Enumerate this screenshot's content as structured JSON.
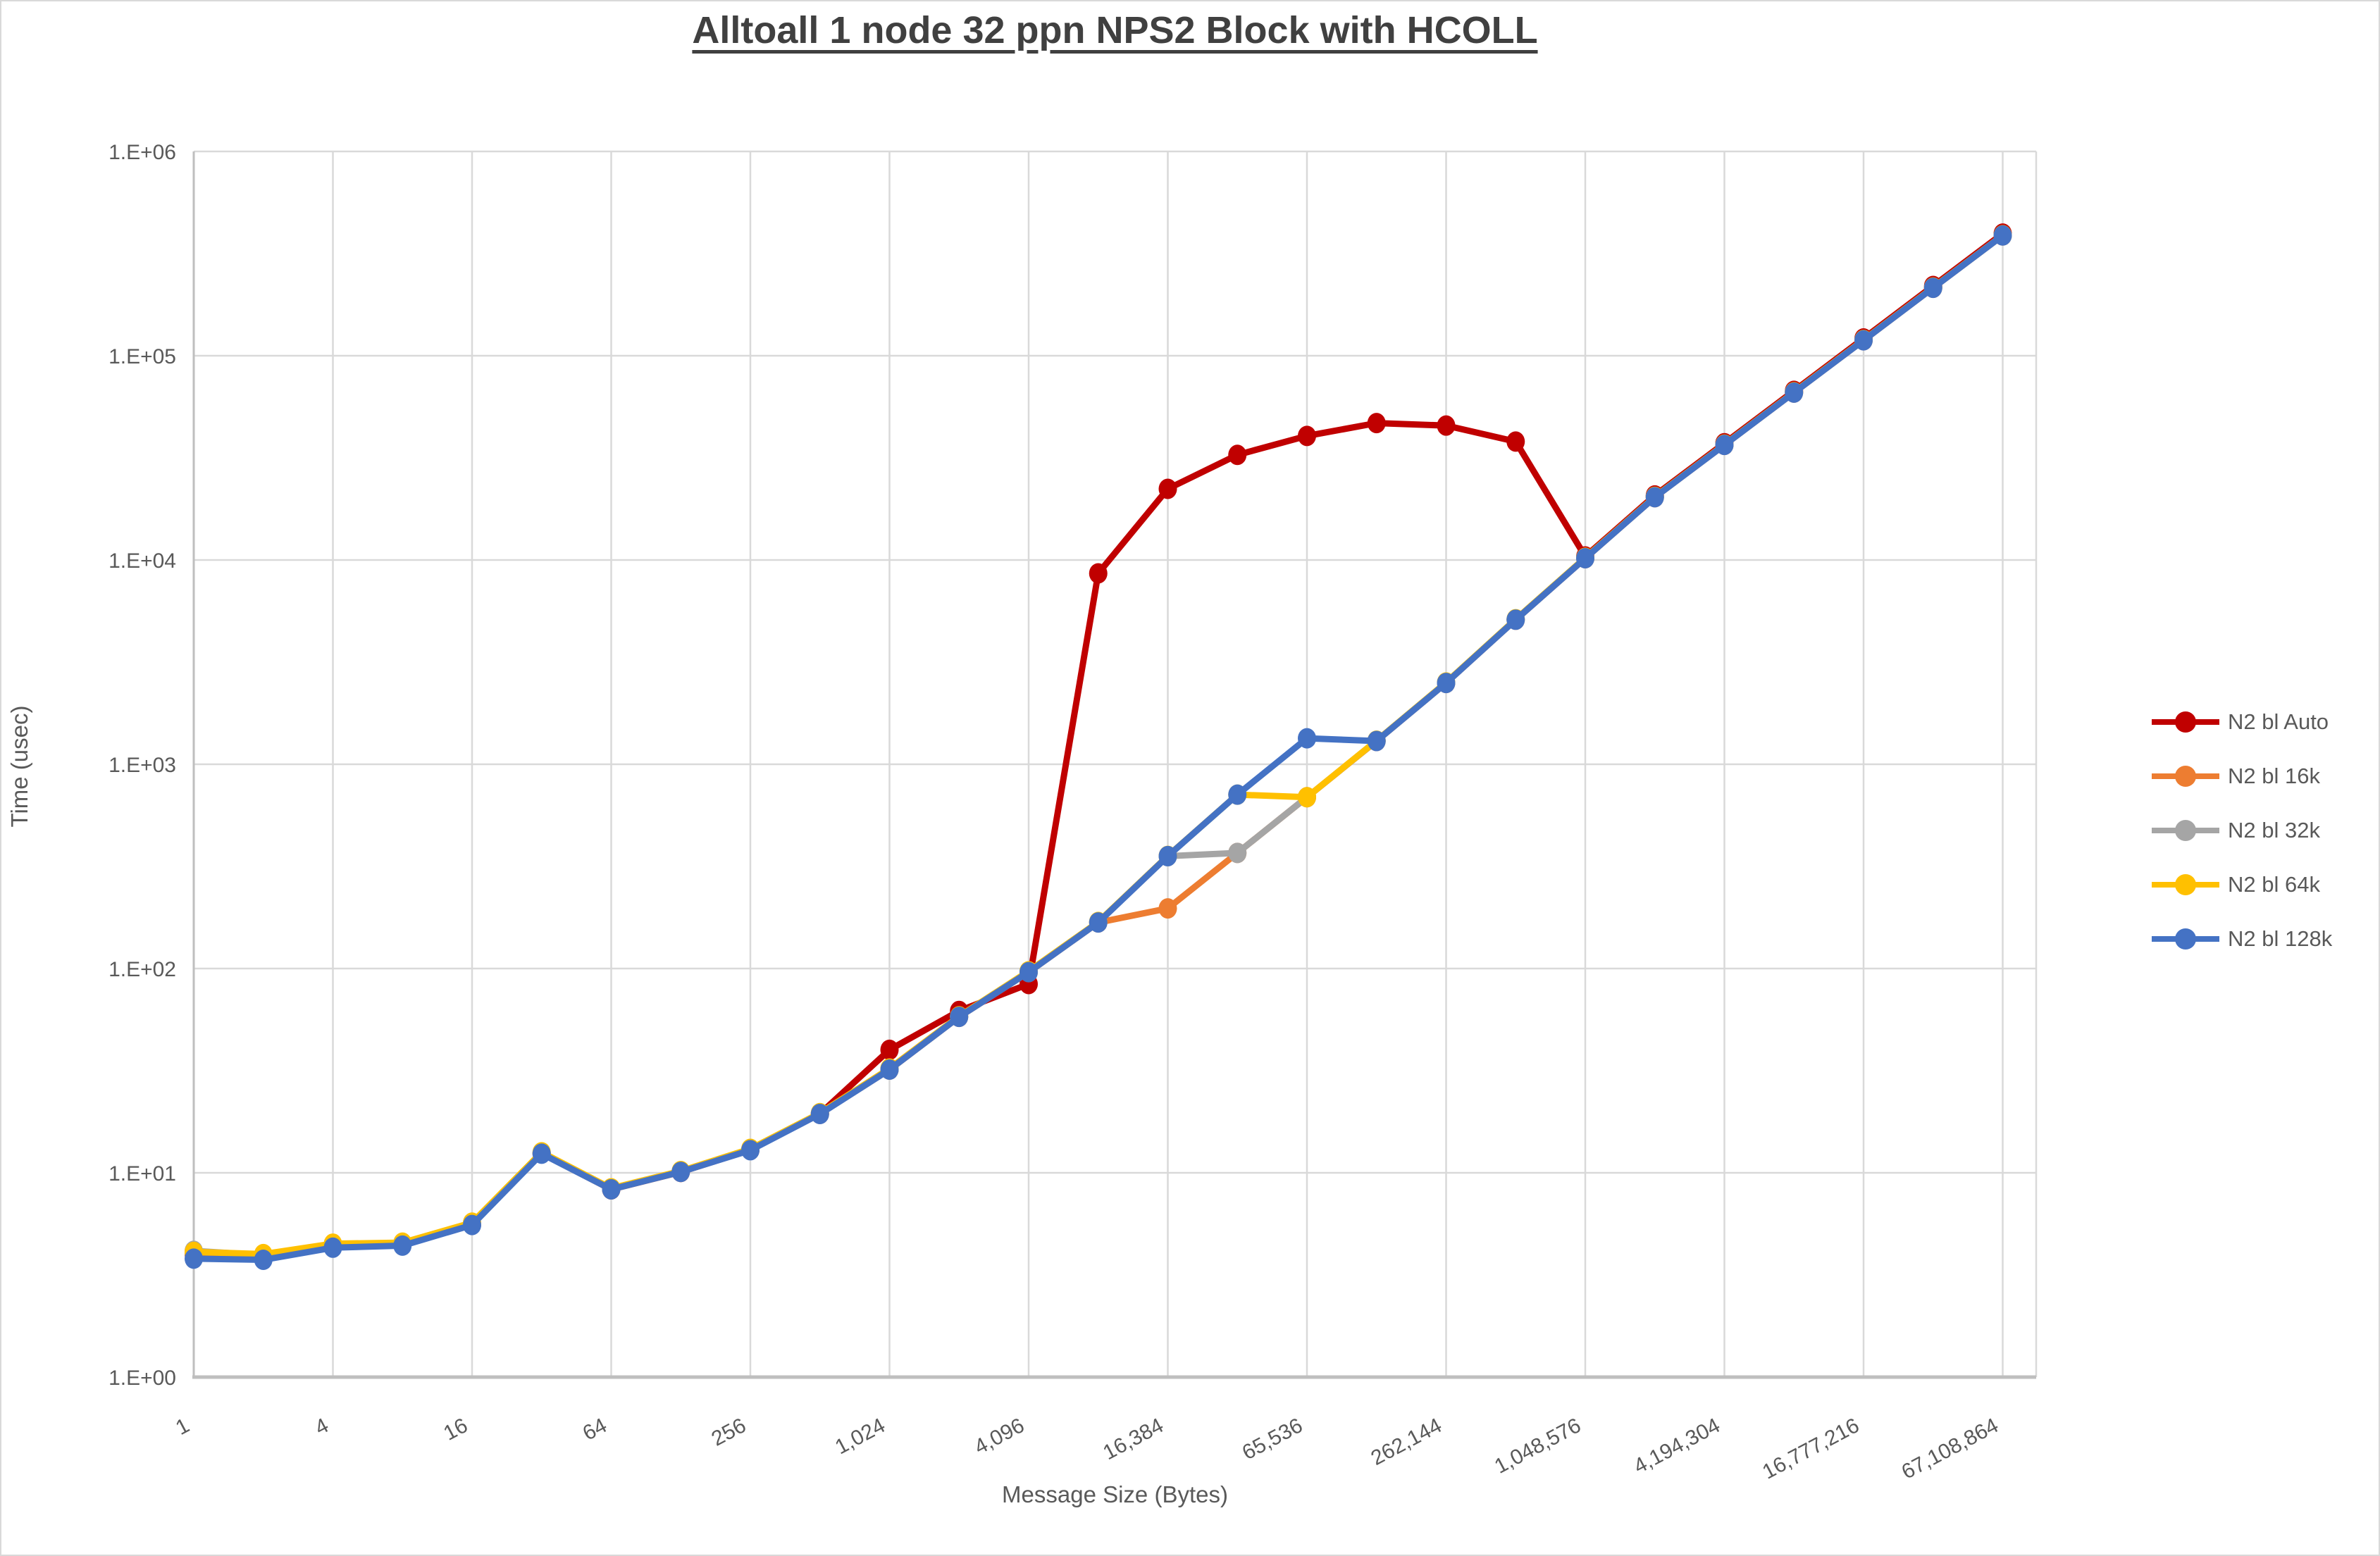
{
  "title": "Alltoall 1 node 32 ppn NPS2 Block with HCOLL",
  "chart_data": {
    "type": "line",
    "title": "Alltoall 1 node 32 ppn NPS2 Block with HCOLL",
    "xlabel": "Message Size (Bytes)",
    "ylabel": "Time (usec)",
    "x_scale": "log2_categories",
    "y_scale": "log10",
    "ylim": [
      1,
      1000000
    ],
    "grid": true,
    "legend_position": "right",
    "y_tick_labels": [
      "1.E+00",
      "1.E+01",
      "1.E+02",
      "1.E+03",
      "1.E+04",
      "1.E+05",
      "1.E+06"
    ],
    "x_tick_labels": [
      "1",
      "4",
      "16",
      "64",
      "256",
      "1,024",
      "4,096",
      "16,384",
      "65,536",
      "262,144",
      "1,048,576",
      "4,194,304",
      "16,777,216",
      "67,108,864"
    ],
    "x": [
      1,
      2,
      4,
      8,
      16,
      32,
      64,
      128,
      256,
      512,
      1024,
      2048,
      4096,
      8192,
      16384,
      32768,
      65536,
      131072,
      262144,
      524288,
      1048576,
      2097152,
      4194304,
      8388608,
      16777216,
      33554432,
      67108864
    ],
    "series": [
      {
        "name": "N2 bl Auto",
        "color": "#C00000",
        "values": [
          4.0,
          3.9,
          4.4,
          4.45,
          5.6,
          12.45,
          8.3,
          10.1,
          12.95,
          19.45,
          40,
          62,
          84,
          8600,
          22300,
          32700,
          40500,
          46800,
          45500,
          38000,
          10400,
          20700,
          37300,
          67300,
          121500,
          219500,
          396000
        ]
      },
      {
        "name": "N2 bl 16k",
        "color": "#ED7D31",
        "values": [
          4.0,
          3.9,
          4.4,
          4.45,
          5.6,
          12.45,
          8.3,
          10.1,
          12.95,
          19.45,
          32,
          58,
          96,
          168,
          197,
          368,
          690,
          1300,
          2500,
          5100,
          10200,
          20300,
          36600,
          66000,
          119000,
          215000,
          388000
        ]
      },
      {
        "name": "N2 bl 32k",
        "color": "#A5A5A5",
        "values": [
          4.15,
          3.95,
          4.45,
          4.5,
          5.65,
          12.5,
          8.35,
          10.15,
          13.0,
          19.5,
          32.2,
          58.2,
          96.5,
          168.5,
          355,
          368,
          690,
          1302,
          2505,
          5110,
          10220,
          20340,
          36650,
          66100,
          119200,
          215300,
          388300
        ]
      },
      {
        "name": "N2 bl 64k",
        "color": "#FFC000",
        "values": [
          4.1,
          4.0,
          4.5,
          4.55,
          5.7,
          12.6,
          8.4,
          10.2,
          13.1,
          19.6,
          32.4,
          58.4,
          97,
          169,
          356,
          710,
          690,
          1305,
          2515,
          5130,
          10260,
          20400,
          36750,
          66300,
          119500,
          215800,
          389000
        ]
      },
      {
        "name": "N2 bl 128k",
        "color": "#4472C4",
        "values": [
          3.8,
          3.75,
          4.3,
          4.4,
          5.55,
          12.4,
          8.3,
          10.1,
          12.9,
          19.4,
          32,
          58,
          96,
          168,
          355,
          710,
          1340,
          1300,
          2500,
          5100,
          10200,
          20300,
          36600,
          66000,
          119000,
          215000,
          388000
        ]
      }
    ]
  },
  "colors": {
    "gridline": "#D9D9D9",
    "axis_line": "#BFBFBF",
    "tick_text": "#595959",
    "title_text": "#404040"
  }
}
